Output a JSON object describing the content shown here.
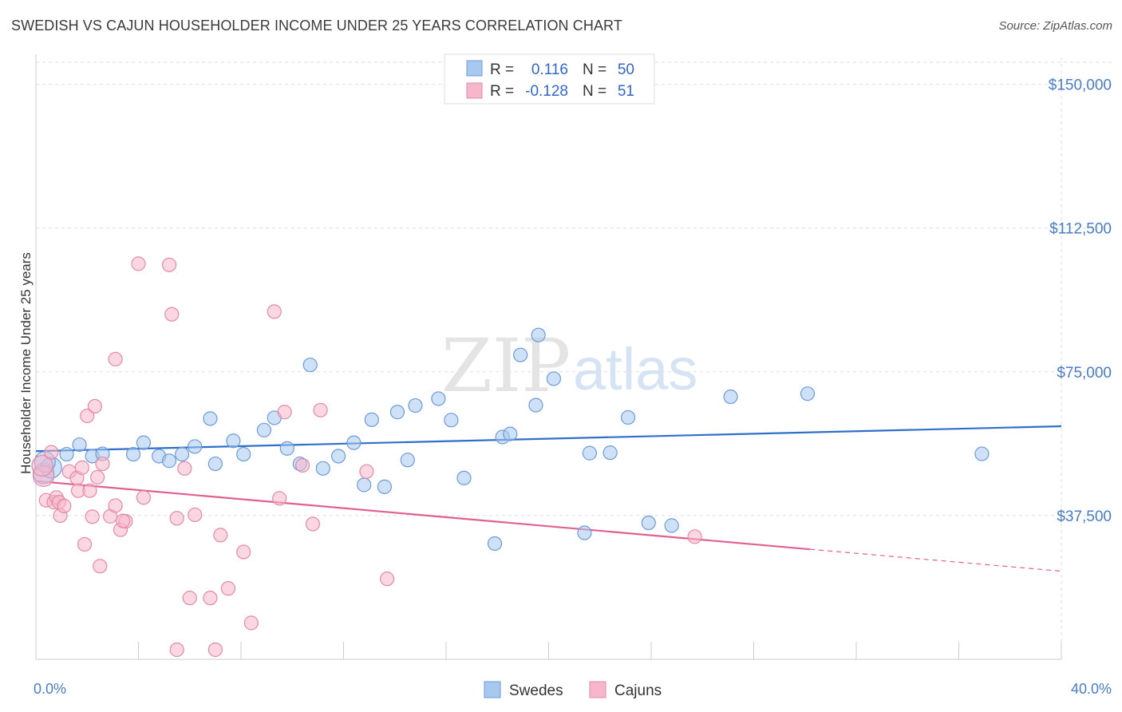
{
  "header": {
    "title": "SWEDISH VS CAJUN HOUSEHOLDER INCOME UNDER 25 YEARS CORRELATION CHART",
    "source": "Source: ZipAtlas.com"
  },
  "watermark": {
    "zip": "ZIP",
    "atlas": "atlas"
  },
  "legend_top": [
    {
      "r_label": "R =",
      "r_value": "0.116",
      "n_label": "N =",
      "n_value": "50",
      "color": "#a8c8f0"
    },
    {
      "r_label": "R =",
      "r_value": "-0.128",
      "n_label": "N =",
      "n_value": "51",
      "color": "#f7b6ca"
    }
  ],
  "legend_bottom": [
    {
      "label": "Swedes",
      "color": "#a8c8f0"
    },
    {
      "label": "Cajuns",
      "color": "#f7b6ca"
    }
  ],
  "chart_data": {
    "type": "scatter",
    "ylabel": "Householder Income Under 25 years",
    "xlabel": "",
    "xlim": [
      0,
      40
    ],
    "ylim": [
      0,
      157000
    ],
    "y_ticks": [
      {
        "value": 37500,
        "label": "$37,500"
      },
      {
        "value": 75000,
        "label": "$75,000"
      },
      {
        "value": 112500,
        "label": "$112,500"
      },
      {
        "value": 150000,
        "label": "$150,000"
      }
    ],
    "x_tick_labels": {
      "min": "0.0%",
      "max": "40.0%"
    },
    "series": [
      {
        "name": "Swedes",
        "color": "#a8c8f0",
        "stroke": "#6d9bd8",
        "line_color": "#2f6fc9",
        "trend": {
          "x": [
            0,
            40
          ],
          "y": [
            54300,
            60800
          ]
        },
        "points": [
          [
            0.3,
            48500
          ],
          [
            0.6,
            50000
          ],
          [
            1.2,
            53500
          ],
          [
            1.7,
            56000
          ],
          [
            2.2,
            53000
          ],
          [
            2.6,
            53600
          ],
          [
            3.8,
            53500
          ],
          [
            4.2,
            56500
          ],
          [
            4.8,
            53000
          ],
          [
            5.2,
            51800
          ],
          [
            5.7,
            53500
          ],
          [
            6.2,
            55500
          ],
          [
            7.0,
            51000
          ],
          [
            6.8,
            62800
          ],
          [
            7.7,
            57000
          ],
          [
            8.1,
            53500
          ],
          [
            8.9,
            59800
          ],
          [
            9.3,
            63000
          ],
          [
            9.8,
            55000
          ],
          [
            10.3,
            51000
          ],
          [
            10.7,
            76800
          ],
          [
            11.2,
            49800
          ],
          [
            11.8,
            53000
          ],
          [
            12.4,
            56500
          ],
          [
            12.8,
            45500
          ],
          [
            13.1,
            62500
          ],
          [
            13.6,
            45000
          ],
          [
            14.1,
            64500
          ],
          [
            14.5,
            52000
          ],
          [
            14.8,
            66200
          ],
          [
            15.7,
            68000
          ],
          [
            16.2,
            62400
          ],
          [
            16.7,
            47300
          ],
          [
            17.9,
            30200
          ],
          [
            18.2,
            58000
          ],
          [
            18.5,
            58800
          ],
          [
            18.9,
            79400
          ],
          [
            19.5,
            66300
          ],
          [
            19.6,
            84600
          ],
          [
            20.2,
            73200
          ],
          [
            21.4,
            33000
          ],
          [
            21.6,
            53800
          ],
          [
            22.4,
            53900
          ],
          [
            23.1,
            63100
          ],
          [
            23.9,
            35600
          ],
          [
            24.8,
            34900
          ],
          [
            27.1,
            68500
          ],
          [
            30.1,
            69300
          ],
          [
            36.9,
            53600
          ],
          [
            0.35,
            51500
          ]
        ]
      },
      {
        "name": "Cajuns",
        "color": "#f7b6ca",
        "stroke": "#e28aa7",
        "line_color": "#e0608f",
        "trend": {
          "x": [
            0,
            30.2
          ],
          "y": [
            46500,
            28700
          ]
        },
        "trend_dashed": {
          "x": [
            30.2,
            40
          ],
          "y": [
            28700,
            23000
          ]
        },
        "points": [
          [
            0.3,
            47800
          ],
          [
            0.25,
            50500
          ],
          [
            0.6,
            54000
          ],
          [
            0.4,
            41500
          ],
          [
            0.7,
            41000
          ],
          [
            0.8,
            42200
          ],
          [
            0.9,
            41000
          ],
          [
            0.95,
            37500
          ],
          [
            1.1,
            40000
          ],
          [
            1.3,
            49000
          ],
          [
            1.6,
            47300
          ],
          [
            1.65,
            44000
          ],
          [
            1.8,
            50000
          ],
          [
            1.9,
            30000
          ],
          [
            2.0,
            63500
          ],
          [
            2.1,
            44000
          ],
          [
            2.2,
            37200
          ],
          [
            2.3,
            66000
          ],
          [
            2.4,
            47500
          ],
          [
            2.5,
            24300
          ],
          [
            2.6,
            51000
          ],
          [
            2.9,
            37300
          ],
          [
            3.1,
            78300
          ],
          [
            3.1,
            40100
          ],
          [
            3.3,
            33800
          ],
          [
            3.5,
            36000
          ],
          [
            3.4,
            36100
          ],
          [
            4.0,
            103200
          ],
          [
            4.2,
            42200
          ],
          [
            5.2,
            102900
          ],
          [
            5.3,
            90000
          ],
          [
            5.5,
            36800
          ],
          [
            5.8,
            49800
          ],
          [
            6.0,
            16000
          ],
          [
            6.2,
            37700
          ],
          [
            6.8,
            16000
          ],
          [
            7.2,
            32400
          ],
          [
            7.5,
            18500
          ],
          [
            8.1,
            28000
          ],
          [
            8.4,
            9500
          ],
          [
            9.3,
            90700
          ],
          [
            9.5,
            42000
          ],
          [
            9.7,
            64500
          ],
          [
            10.4,
            50600
          ],
          [
            10.8,
            35300
          ],
          [
            11.1,
            65000
          ],
          [
            12.9,
            49000
          ],
          [
            13.7,
            21000
          ],
          [
            7.0,
            2500
          ],
          [
            5.5,
            2500
          ],
          [
            25.7,
            32000
          ]
        ]
      }
    ]
  }
}
